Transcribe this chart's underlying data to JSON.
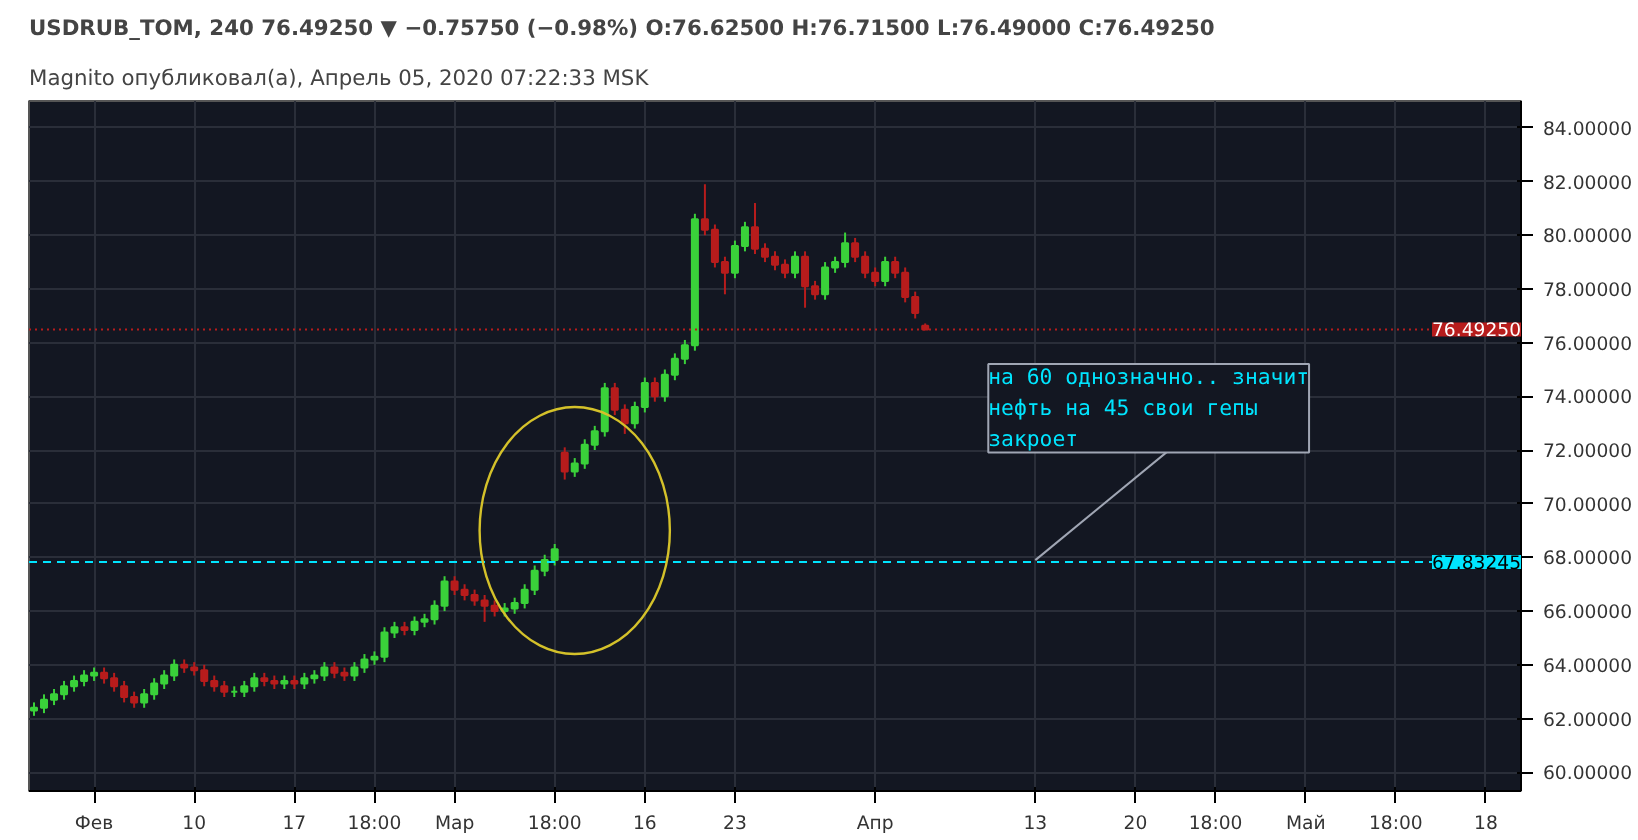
{
  "chart_data": {
    "type": "candlestick",
    "title": "Magnito опубликовал(а), Апрель 05, 2020 07:22:33 MSK",
    "subtitle": "USDRUB_TOM, 240 76.49250 ▼ −0.75750 (−0.98%) O:76.62500 H:76.71500 L:76.49000 C:76.49250",
    "categories": [
      null,
      null,
      null,
      null,
      null,
      null,
      "Фев",
      null,
      null,
      null,
      null,
      null,
      null,
      null,
      null,
      null,
      "10",
      null,
      null,
      null,
      null,
      null,
      null,
      null,
      null,
      null,
      "17",
      null,
      null,
      null,
      null,
      null,
      null,
      null,
      "18:00",
      null,
      null,
      null,
      null,
      null,
      null,
      null,
      "Мар",
      null,
      null,
      null,
      null,
      null,
      null,
      null,
      null,
      null,
      "18:00",
      null,
      null,
      null,
      null,
      null,
      null,
      null,
      null,
      "16",
      null,
      null,
      null,
      null,
      null,
      null,
      null,
      null,
      "23",
      null,
      null,
      null,
      null,
      null,
      null,
      null,
      null,
      null,
      null,
      null,
      null,
      null,
      "Апр",
      null,
      null,
      null,
      null,
      null,
      null,
      null,
      null,
      null,
      null,
      null,
      null,
      null,
      null,
      null,
      "13",
      null,
      null,
      null,
      null,
      null,
      null,
      null,
      null,
      null,
      "20",
      null,
      null,
      null,
      null,
      null,
      null,
      null,
      "18:00",
      null,
      null,
      null,
      null,
      null,
      null,
      null,
      null,
      "Май",
      null,
      null,
      null,
      null,
      null,
      null,
      null,
      null,
      "18:00",
      null,
      null,
      null,
      null,
      null,
      null,
      null,
      null,
      "18",
      null,
      null,
      null
    ],
    "ohlc": [
      [
        62.3,
        62.6,
        62.1,
        62.4
      ],
      [
        62.4,
        62.9,
        62.2,
        62.7
      ],
      [
        62.7,
        63.1,
        62.5,
        62.9
      ],
      [
        62.9,
        63.4,
        62.7,
        63.2
      ],
      [
        63.2,
        63.6,
        63.0,
        63.4
      ],
      [
        63.4,
        63.8,
        63.2,
        63.6
      ],
      [
        63.6,
        63.9,
        63.4,
        63.7
      ],
      [
        63.7,
        63.9,
        63.3,
        63.5
      ],
      [
        63.5,
        63.7,
        63.0,
        63.2
      ],
      [
        63.2,
        63.4,
        62.6,
        62.8
      ],
      [
        62.8,
        63.0,
        62.4,
        62.6
      ],
      [
        62.6,
        63.1,
        62.4,
        62.9
      ],
      [
        62.9,
        63.5,
        62.7,
        63.3
      ],
      [
        63.3,
        63.8,
        63.1,
        63.6
      ],
      [
        63.6,
        64.2,
        63.4,
        64.0
      ],
      [
        64.0,
        64.2,
        63.7,
        63.9
      ],
      [
        63.9,
        64.1,
        63.6,
        63.8
      ],
      [
        63.8,
        64.0,
        63.2,
        63.4
      ],
      [
        63.4,
        63.6,
        63.0,
        63.2
      ],
      [
        63.2,
        63.4,
        62.8,
        63.0
      ],
      [
        63.0,
        63.2,
        62.8,
        63.0
      ],
      [
        63.0,
        63.4,
        62.8,
        63.2
      ],
      [
        63.2,
        63.7,
        63.0,
        63.5
      ],
      [
        63.5,
        63.7,
        63.2,
        63.4
      ],
      [
        63.4,
        63.6,
        63.1,
        63.3
      ],
      [
        63.3,
        63.6,
        63.1,
        63.4
      ],
      [
        63.4,
        63.6,
        63.1,
        63.3
      ],
      [
        63.3,
        63.7,
        63.1,
        63.5
      ],
      [
        63.5,
        63.8,
        63.3,
        63.6
      ],
      [
        63.6,
        64.1,
        63.4,
        63.9
      ],
      [
        63.9,
        64.1,
        63.5,
        63.7
      ],
      [
        63.7,
        63.9,
        63.4,
        63.6
      ],
      [
        63.6,
        64.1,
        63.4,
        63.9
      ],
      [
        63.9,
        64.4,
        63.7,
        64.2
      ],
      [
        64.2,
        64.5,
        64.0,
        64.3
      ],
      [
        64.3,
        65.4,
        64.1,
        65.2
      ],
      [
        65.2,
        65.6,
        65.0,
        65.4
      ],
      [
        65.4,
        65.6,
        65.1,
        65.3
      ],
      [
        65.3,
        65.8,
        65.1,
        65.6
      ],
      [
        65.6,
        65.9,
        65.4,
        65.7
      ],
      [
        65.7,
        66.4,
        65.5,
        66.2
      ],
      [
        66.2,
        67.3,
        66.0,
        67.1
      ],
      [
        67.1,
        67.3,
        66.6,
        66.8
      ],
      [
        66.8,
        67.0,
        66.4,
        66.6
      ],
      [
        66.6,
        66.8,
        66.2,
        66.4
      ],
      [
        66.4,
        66.6,
        65.6,
        66.2
      ],
      [
        66.2,
        66.4,
        65.8,
        66.0
      ],
      [
        66.0,
        66.3,
        65.8,
        66.1
      ],
      [
        66.1,
        66.5,
        65.9,
        66.3
      ],
      [
        66.3,
        67.0,
        66.1,
        66.8
      ],
      [
        66.8,
        67.7,
        66.6,
        67.5
      ],
      [
        67.5,
        68.1,
        67.3,
        67.9
      ],
      [
        67.9,
        68.5,
        67.7,
        68.3
      ],
      [
        71.9,
        72.1,
        70.9,
        71.2
      ],
      [
        71.2,
        71.7,
        71.0,
        71.5
      ],
      [
        71.5,
        72.4,
        71.3,
        72.2
      ],
      [
        72.2,
        72.9,
        72.0,
        72.7
      ],
      [
        72.7,
        74.5,
        72.5,
        74.3
      ],
      [
        74.3,
        74.5,
        73.3,
        73.5
      ],
      [
        73.5,
        73.7,
        72.6,
        73.0
      ],
      [
        73.0,
        73.8,
        72.8,
        73.6
      ],
      [
        73.6,
        74.7,
        73.4,
        74.5
      ],
      [
        74.5,
        74.7,
        73.8,
        74.0
      ],
      [
        74.0,
        75.0,
        73.8,
        74.8
      ],
      [
        74.8,
        75.6,
        74.6,
        75.4
      ],
      [
        75.4,
        76.1,
        75.2,
        75.9
      ],
      [
        75.9,
        80.8,
        75.7,
        80.6
      ],
      [
        80.6,
        81.9,
        80.0,
        80.2
      ],
      [
        80.2,
        80.4,
        78.8,
        79.0
      ],
      [
        79.0,
        79.2,
        77.8,
        78.6
      ],
      [
        78.6,
        79.8,
        78.4,
        79.6
      ],
      [
        79.6,
        80.5,
        79.4,
        80.3
      ],
      [
        80.3,
        81.2,
        79.3,
        79.5
      ],
      [
        79.5,
        79.7,
        79.0,
        79.2
      ],
      [
        79.2,
        79.4,
        78.7,
        78.9
      ],
      [
        78.9,
        79.1,
        78.4,
        78.6
      ],
      [
        78.6,
        79.4,
        78.4,
        79.2
      ],
      [
        79.2,
        79.4,
        77.3,
        78.1
      ],
      [
        78.1,
        78.3,
        77.6,
        77.8
      ],
      [
        77.8,
        79.0,
        77.6,
        78.8
      ],
      [
        78.8,
        79.2,
        78.6,
        79.0
      ],
      [
        79.0,
        80.1,
        78.8,
        79.7
      ],
      [
        79.7,
        79.9,
        79.0,
        79.2
      ],
      [
        79.2,
        79.4,
        78.4,
        78.6
      ],
      [
        78.6,
        78.8,
        78.1,
        78.3
      ],
      [
        78.3,
        79.2,
        78.1,
        79.0
      ],
      [
        79.0,
        79.2,
        78.4,
        78.6
      ],
      [
        78.6,
        78.8,
        77.5,
        77.7
      ],
      [
        77.7,
        77.9,
        76.9,
        77.1
      ],
      [
        76.625,
        76.715,
        76.49,
        76.4925
      ],
      null,
      null,
      null,
      null,
      null,
      null,
      null,
      null,
      null,
      null,
      null,
      null,
      null,
      null,
      null,
      null,
      null,
      null,
      null,
      null,
      null,
      null,
      null,
      null,
      null,
      null,
      null,
      null,
      null,
      null,
      null,
      null,
      null,
      null,
      null,
      null,
      null,
      null,
      null,
      null,
      null,
      null,
      null,
      null,
      null,
      null,
      null,
      null,
      null,
      null,
      null,
      null,
      null,
      null,
      null,
      null,
      null,
      null,
      null
    ],
    "colors": [
      "#3ad13a",
      "#3ad13a",
      "#3ad13a",
      "#3ad13a",
      "#3ad13a",
      "#3ad13a",
      "#3ad13a",
      "#b71c1c",
      "#b71c1c",
      "#b71c1c",
      "#b71c1c",
      "#3ad13a",
      "#3ad13a",
      "#3ad13a",
      "#3ad13a",
      "#b71c1c",
      "#b71c1c",
      "#b71c1c",
      "#b71c1c",
      "#b71c1c",
      "#3ad13a",
      "#3ad13a",
      "#3ad13a",
      "#b71c1c",
      "#b71c1c",
      "#3ad13a",
      "#b71c1c",
      "#3ad13a",
      "#3ad13a",
      "#3ad13a",
      "#b71c1c",
      "#b71c1c",
      "#3ad13a",
      "#3ad13a",
      "#3ad13a",
      "#3ad13a",
      "#3ad13a",
      "#b71c1c",
      "#3ad13a",
      "#3ad13a",
      "#3ad13a",
      "#3ad13a",
      "#b71c1c",
      "#b71c1c",
      "#b71c1c",
      "#b71c1c",
      "#b71c1c",
      "#3ad13a",
      "#3ad13a",
      "#3ad13a",
      "#3ad13a",
      "#3ad13a",
      "#3ad13a",
      "#b71c1c",
      "#3ad13a",
      "#3ad13a",
      "#3ad13a",
      "#3ad13a",
      "#b71c1c",
      "#b71c1c",
      "#3ad13a",
      "#3ad13a",
      "#b71c1c",
      "#3ad13a",
      "#3ad13a",
      "#3ad13a",
      "#3ad13a",
      "#b71c1c",
      "#b71c1c",
      "#b71c1c",
      "#3ad13a",
      "#3ad13a",
      "#b71c1c",
      "#b71c1c",
      "#b71c1c",
      "#b71c1c",
      "#3ad13a",
      "#b71c1c",
      "#b71c1c",
      "#3ad13a",
      "#3ad13a",
      "#3ad13a",
      "#b71c1c",
      "#b71c1c",
      "#b71c1c",
      "#3ad13a",
      "#b71c1c",
      "#b71c1c",
      "#b71c1c",
      "#b71c1c",
      null,
      null,
      null,
      null,
      null,
      null,
      null,
      null,
      null,
      null,
      null,
      null,
      null,
      null,
      null,
      null,
      null,
      null,
      null,
      null,
      null,
      null,
      null,
      null,
      null,
      null,
      null,
      null,
      null,
      null,
      null,
      null,
      null,
      null,
      null,
      null,
      null,
      null,
      null,
      null,
      null,
      null,
      null,
      null,
      null,
      null,
      null,
      null,
      null,
      null,
      null,
      null,
      null,
      null,
      null,
      null,
      null,
      null,
      null
    ],
    "ylim": [
      59.3,
      85.0
    ],
    "yticks": [
      {
        "value": 60,
        "label": "60.00000"
      },
      {
        "value": 62,
        "label": "62.00000"
      },
      {
        "value": 64,
        "label": "64.00000"
      },
      {
        "value": 66,
        "label": "66.00000"
      },
      {
        "value": 68,
        "label": "68.00000"
      },
      {
        "value": 70,
        "label": "70.00000"
      },
      {
        "value": 72,
        "label": "72.00000"
      },
      {
        "value": 74,
        "label": "74.00000"
      },
      {
        "value": 76,
        "label": "76.00000"
      },
      {
        "value": 78,
        "label": "78.00000"
      },
      {
        "value": 80,
        "label": "80.00000"
      },
      {
        "value": 82,
        "label": "82.00000"
      },
      {
        "value": 84,
        "label": "84.00000"
      }
    ],
    "grid": true,
    "ref_lines": [
      {
        "axis": "y",
        "value": 76.4925,
        "label": "76.49250",
        "color": "#b71c1c",
        "line_style": "dotted"
      },
      {
        "axis": "y",
        "value": 67.83245,
        "label": "67.83245",
        "color": "#00e5ff",
        "line_style": "dashed"
      }
    ],
    "annotations": [
      {
        "text": "на 60 однозначно.. значит\nнефть на 45 свои гепы\nзакроет",
        "x": "13",
        "y": 67.9
      }
    ]
  }
}
